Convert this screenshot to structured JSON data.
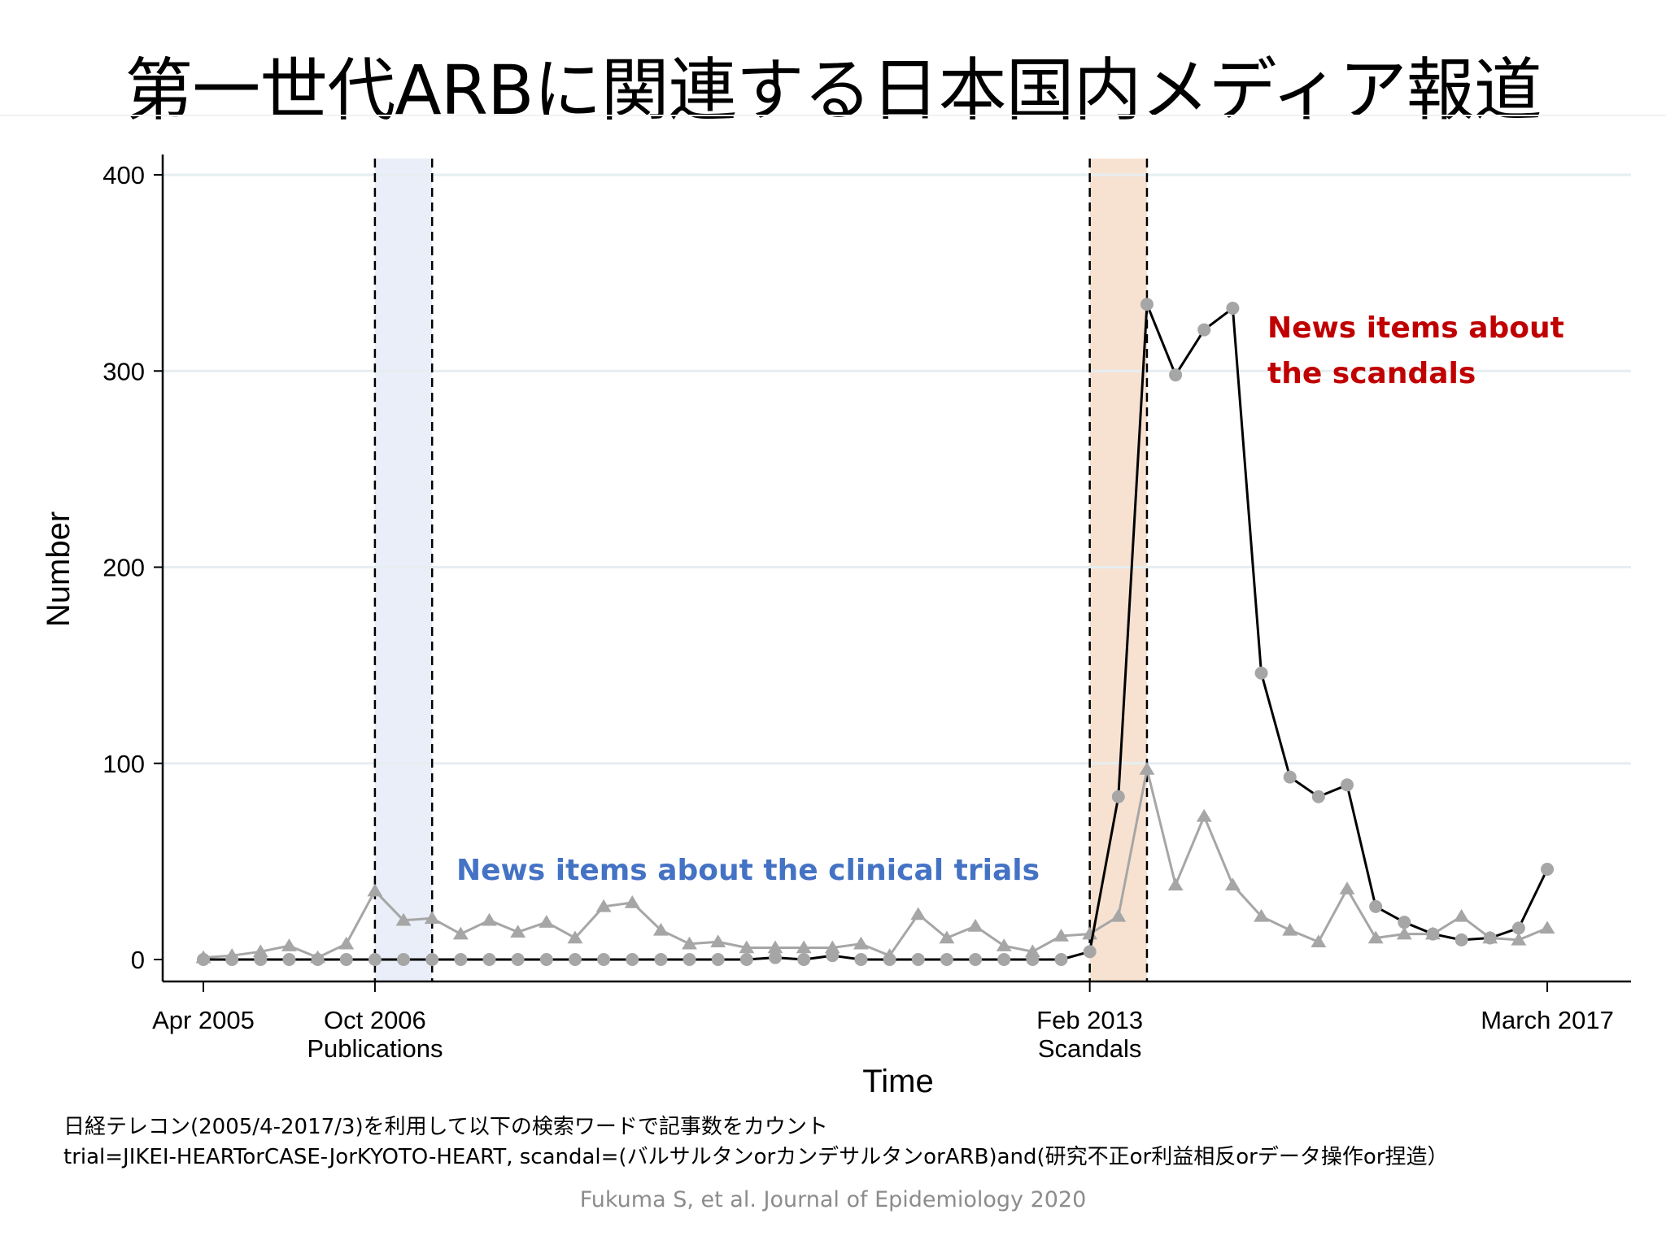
{
  "slide": {
    "title": "第一世代ARBに関連する日本国内メディア報道",
    "note_line1": "日経テレコン(2005/4-2017/3)を利用して以下の検索ワードで記事数をカウント",
    "note_line2": "trial=JIKEI-HEARTorCASE-JorKYOTO-HEART, scandal=(バルサルタンorカンデサルタンorARB)and(研究不正or利益相反orデータ操作or捏造）",
    "citation": "Fukuma S, et al. Journal of Epidemiology 2020"
  },
  "chart_data": {
    "type": "line",
    "xlabel": "Time",
    "ylabel": "Number",
    "ylim": [
      0,
      400
    ],
    "yticks": [
      0,
      100,
      200,
      300,
      400
    ],
    "x_unit": "quarter",
    "x_start": "Apr 2005",
    "x_end": "March 2017",
    "xticks": [
      {
        "label": "Apr 2005",
        "sublabel": "",
        "period": "2005-Q2"
      },
      {
        "label": "Oct 2006",
        "sublabel": "Publications",
        "period": "2006-Q4"
      },
      {
        "label": "Feb 2013",
        "sublabel": "Scandals",
        "period": "2013-Q1"
      },
      {
        "label": "March 2017",
        "sublabel": "",
        "period": "2017-Q1"
      }
    ],
    "shaded_periods": [
      {
        "from": "2006-Q4",
        "to": "2007-Q2",
        "color": "#e9eef8"
      },
      {
        "from": "2013-Q1",
        "to": "2013-Q3",
        "color": "#f7e2d2"
      }
    ],
    "series": [
      {
        "name": "News items about the clinical trials",
        "marker": "triangle",
        "line_color": "#a6a6a6",
        "marker_color": "#a6a6a6",
        "label_color": "#4472c4",
        "x": [
          "2005-Q2",
          "2005-Q3",
          "2005-Q4",
          "2006-Q1",
          "2006-Q2",
          "2006-Q3",
          "2006-Q4",
          "2007-Q1",
          "2007-Q2",
          "2007-Q3",
          "2007-Q4",
          "2008-Q1",
          "2008-Q2",
          "2008-Q3",
          "2008-Q4",
          "2009-Q1",
          "2009-Q2",
          "2009-Q3",
          "2009-Q4",
          "2010-Q1",
          "2010-Q2",
          "2010-Q3",
          "2010-Q4",
          "2011-Q1",
          "2011-Q2",
          "2011-Q3",
          "2011-Q4",
          "2012-Q1",
          "2012-Q2",
          "2012-Q3",
          "2012-Q4",
          "2013-Q1",
          "2013-Q2",
          "2013-Q3",
          "2013-Q4",
          "2014-Q1",
          "2014-Q2",
          "2014-Q3",
          "2014-Q4",
          "2015-Q1",
          "2015-Q2",
          "2015-Q3",
          "2015-Q4",
          "2016-Q1",
          "2016-Q2",
          "2016-Q3",
          "2016-Q4",
          "2017-Q1"
        ],
        "values": [
          1,
          2,
          4,
          7,
          1,
          8,
          35,
          20,
          21,
          13,
          20,
          14,
          19,
          11,
          27,
          29,
          15,
          8,
          9,
          6,
          6,
          6,
          6,
          8,
          2,
          23,
          11,
          17,
          7,
          4,
          12,
          13,
          22,
          97,
          38,
          73,
          38,
          22,
          15,
          9,
          36,
          11,
          13,
          13,
          22,
          11,
          10,
          16
        ]
      },
      {
        "name": "News items about the scandals",
        "marker": "circle",
        "line_color": "#000000",
        "marker_color": "#a6a6a6",
        "label_color": "#c00000",
        "x": [
          "2005-Q2",
          "2005-Q3",
          "2005-Q4",
          "2006-Q1",
          "2006-Q2",
          "2006-Q3",
          "2006-Q4",
          "2007-Q1",
          "2007-Q2",
          "2007-Q3",
          "2007-Q4",
          "2008-Q1",
          "2008-Q2",
          "2008-Q3",
          "2008-Q4",
          "2009-Q1",
          "2009-Q2",
          "2009-Q3",
          "2009-Q4",
          "2010-Q1",
          "2010-Q2",
          "2010-Q3",
          "2010-Q4",
          "2011-Q1",
          "2011-Q2",
          "2011-Q3",
          "2011-Q4",
          "2012-Q1",
          "2012-Q2",
          "2012-Q3",
          "2012-Q4",
          "2013-Q1",
          "2013-Q2",
          "2013-Q3",
          "2013-Q4",
          "2014-Q1",
          "2014-Q2",
          "2014-Q3",
          "2014-Q4",
          "2015-Q1",
          "2015-Q2",
          "2015-Q3",
          "2015-Q4",
          "2016-Q1",
          "2016-Q2",
          "2016-Q3",
          "2016-Q4",
          "2017-Q1"
        ],
        "values": [
          0,
          0,
          0,
          0,
          0,
          0,
          0,
          0,
          0,
          0,
          0,
          0,
          0,
          0,
          0,
          0,
          0,
          0,
          0,
          0,
          1,
          0,
          2,
          0,
          0,
          0,
          0,
          0,
          0,
          0,
          0,
          4,
          83,
          334,
          298,
          321,
          332,
          146,
          93,
          83,
          89,
          27,
          19,
          13,
          10,
          11,
          16,
          46
        ]
      }
    ],
    "annotations": [
      {
        "text": "News items about the clinical trials",
        "series": 0
      },
      {
        "text": "News items about",
        "series": 1
      },
      {
        "text": "the scandals",
        "series": 1
      }
    ]
  }
}
